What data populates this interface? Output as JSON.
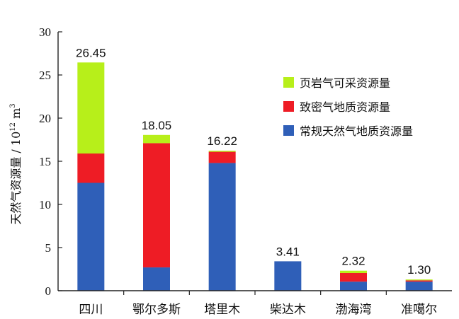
{
  "chart_data": {
    "type": "bar",
    "stacked": true,
    "categories": [
      "四川",
      "鄂尔多斯",
      "塔里木",
      "柴达木",
      "渤海湾",
      "准噶尔"
    ],
    "series": [
      {
        "name": "常规天然气地质资源量",
        "color": "#2f5fb8",
        "values": [
          12.5,
          2.7,
          14.8,
          3.41,
          1.05,
          1.05
        ]
      },
      {
        "name": "致密气地质资源量",
        "color": "#ee1c25",
        "values": [
          3.4,
          14.4,
          1.3,
          0,
          1.0,
          0.15
        ]
      },
      {
        "name": "页岩气可采资源量",
        "color": "#b7ef1a",
        "values": [
          10.55,
          0.95,
          0.12,
          0,
          0.27,
          0.1
        ]
      }
    ],
    "totals": [
      "26.45",
      "18.05",
      "16.22",
      "3.41",
      "2.32",
      "1.30"
    ],
    "ylabel_prefix": "天然气资源量 / 10",
    "ylabel_sup": "12",
    "ylabel_unit": " m",
    "ylabel_unit_sup": "3",
    "ylim": [
      0,
      30
    ],
    "yticks": [
      "0",
      "5",
      "10",
      "15",
      "20",
      "25",
      "30"
    ],
    "legend_position": "right",
    "grid": false
  }
}
